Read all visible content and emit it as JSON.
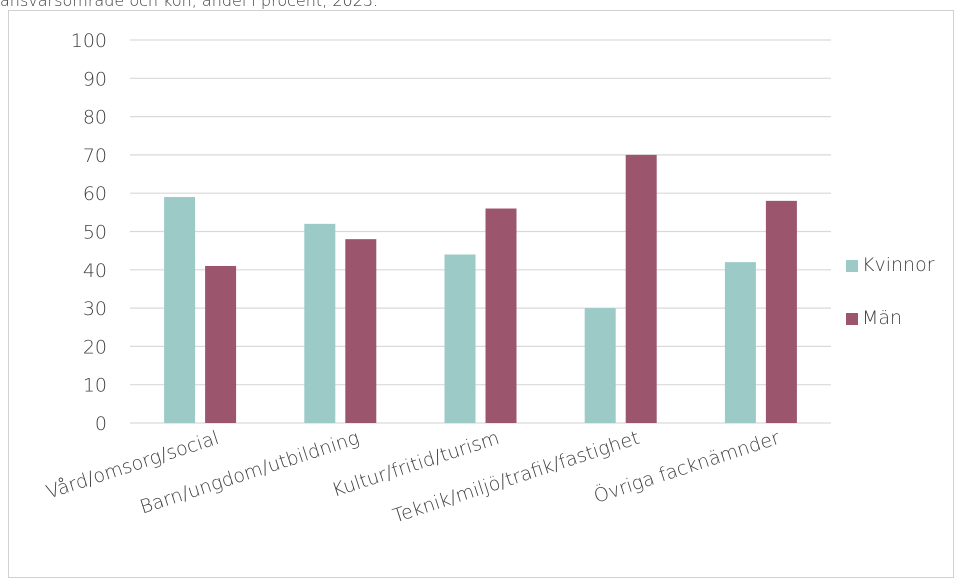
{
  "caption": "ansvarsområde och kön, andel i procent, 2023.",
  "chart_data": {
    "type": "bar",
    "title": "",
    "xlabel": "",
    "ylabel": "",
    "ylim": [
      0,
      100
    ],
    "yticks": [
      0,
      10,
      20,
      30,
      40,
      50,
      60,
      70,
      80,
      90,
      100
    ],
    "grid": true,
    "legend_position": "right",
    "categories": [
      "Vård/omsorg/social",
      "Barn/ungdom/utbildning",
      "Kultur/fritid/turism",
      "Teknik/miljö/trafik/fastighet",
      "Övriga facknämnder"
    ],
    "series": [
      {
        "name": "Kvinnor",
        "color": "#9ccac7",
        "values": [
          59,
          52,
          44,
          30,
          42
        ]
      },
      {
        "name": "Män",
        "color": "#9b556d",
        "values": [
          41,
          48,
          56,
          70,
          58
        ]
      }
    ]
  }
}
